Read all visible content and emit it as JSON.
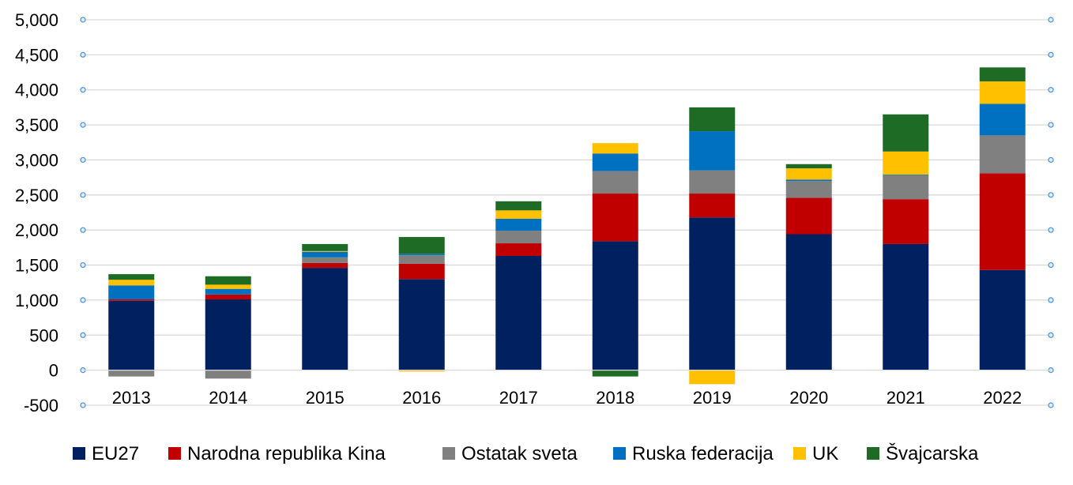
{
  "chart_data": {
    "type": "bar",
    "stacked": true,
    "categories": [
      "2013",
      "2014",
      "2015",
      "2016",
      "2017",
      "2018",
      "2019",
      "2020",
      "2021",
      "2022"
    ],
    "series": [
      {
        "name": "EU27",
        "color": "#002060",
        "values": [
          990,
          1010,
          1460,
          1300,
          1630,
          1840,
          2180,
          1940,
          1800,
          1430
        ]
      },
      {
        "name": "Narodna republika Kina",
        "color": "#C00000",
        "values": [
          20,
          70,
          70,
          220,
          180,
          680,
          340,
          520,
          640,
          1380
        ]
      },
      {
        "name": "Ostatak sveta",
        "color": "#808080",
        "values": [
          -90,
          -120,
          80,
          120,
          180,
          320,
          330,
          240,
          340,
          540
        ]
      },
      {
        "name": "Ruska federacija",
        "color": "#0070C0",
        "values": [
          200,
          80,
          80,
          20,
          170,
          250,
          560,
          20,
          10,
          450
        ]
      },
      {
        "name": "UK",
        "color": "#FFC000",
        "values": [
          80,
          60,
          10,
          -20,
          120,
          150,
          -200,
          160,
          330,
          320
        ]
      },
      {
        "name": "Švajcarska",
        "color": "#1E6B26",
        "values": [
          80,
          120,
          100,
          240,
          130,
          -90,
          340,
          60,
          530,
          200
        ]
      }
    ],
    "ylim": [
      -500,
      5000
    ],
    "yticks": [
      -500,
      0,
      500,
      1000,
      1500,
      2000,
      2500,
      3000,
      3500,
      4000,
      4500,
      5000
    ],
    "ytick_labels": [
      "-500",
      "0",
      "500",
      "1,000",
      "1,500",
      "2,000",
      "2,500",
      "3,000",
      "3,500",
      "4,000",
      "4,500",
      "5,000"
    ],
    "grid": true,
    "legend_position": "bottom",
    "title": "",
    "xlabel": "",
    "ylabel": ""
  }
}
